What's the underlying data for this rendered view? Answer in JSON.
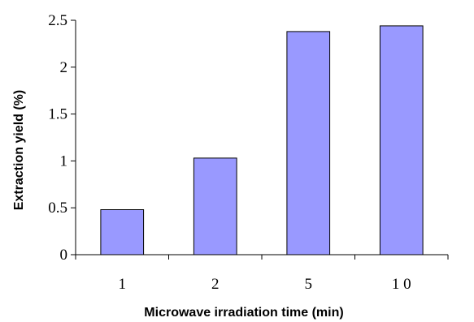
{
  "chart_data": {
    "type": "bar",
    "categories": [
      "1",
      "2",
      "5",
      "1 0"
    ],
    "values": [
      0.48,
      1.03,
      2.38,
      2.44
    ],
    "ylabel": "Extraction yield (%)",
    "xlabel": "Microwave irradiation time (min)",
    "ylim": [
      0,
      2.5
    ],
    "yticks": [
      0,
      0.5,
      1,
      1.5,
      2,
      2.5
    ],
    "ytick_labels": [
      "0",
      "0.5",
      "1",
      "1.5",
      "2",
      "2.5"
    ],
    "grid": false,
    "legend": "none",
    "bar_color": "#9999ff",
    "bar_edge_color": "#000000"
  }
}
